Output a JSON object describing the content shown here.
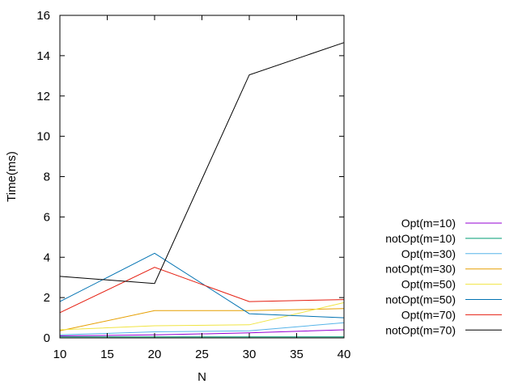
{
  "chart_data": {
    "type": "line",
    "title": "",
    "xlabel": "N",
    "ylabel": "Time(ms)",
    "xlim": [
      10,
      40
    ],
    "ylim": [
      0,
      16
    ],
    "xticks": [
      10,
      15,
      20,
      25,
      30,
      35,
      40
    ],
    "yticks": [
      0,
      2,
      4,
      6,
      8,
      10,
      12,
      14,
      16
    ],
    "grid": false,
    "legend_position": "right",
    "x": [
      10,
      20,
      30,
      40
    ],
    "series": [
      {
        "name": "Opt(m=10)",
        "color": "#9400d3",
        "values": [
          0.1,
          0.15,
          0.25,
          0.4
        ]
      },
      {
        "name": "notOpt(m=10)",
        "color": "#009e73",
        "values": [
          0.05,
          0.05,
          0.05,
          0.05
        ]
      },
      {
        "name": "Opt(m=30)",
        "color": "#56b4e9",
        "values": [
          0.15,
          0.3,
          0.35,
          0.75
        ]
      },
      {
        "name": "notOpt(m=30)",
        "color": "#e69f00",
        "values": [
          0.35,
          1.35,
          1.35,
          1.45
        ]
      },
      {
        "name": "Opt(m=50)",
        "color": "#f0e442",
        "values": [
          0.4,
          0.6,
          0.65,
          1.75
        ]
      },
      {
        "name": "notOpt(m=50)",
        "color": "#0072b2",
        "values": [
          1.8,
          4.2,
          1.2,
          1.0
        ]
      },
      {
        "name": "Opt(m=70)",
        "color": "#e51e10",
        "values": [
          1.25,
          3.5,
          1.8,
          1.9
        ]
      },
      {
        "name": "notOpt(m=70)",
        "color": "#000000",
        "values": [
          3.05,
          2.7,
          13.05,
          14.65
        ]
      }
    ]
  }
}
